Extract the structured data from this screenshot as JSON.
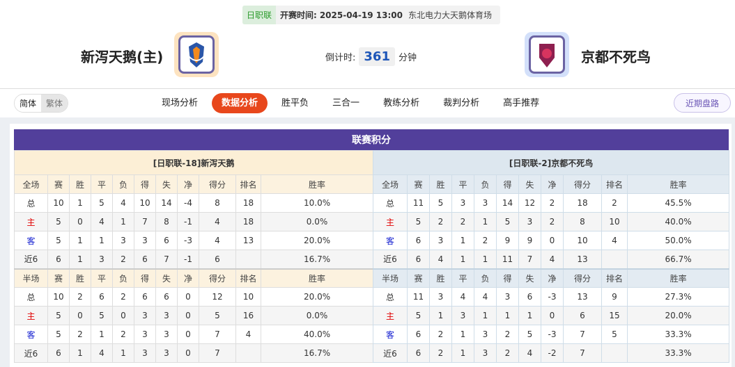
{
  "header": {
    "league": "日职联",
    "time_label": "开赛时间:",
    "time": "2025-04-19 13:00",
    "venue": "东北电力大天鹅体育场"
  },
  "home": {
    "name": "新泻天鹅(主)",
    "logo": "albirex-niigata-crest"
  },
  "away": {
    "name": "京都不死鸟",
    "logo": "kyoto-sanga-crest"
  },
  "countdown": {
    "label": "倒计时:",
    "value": "361",
    "unit": "分钟"
  },
  "lang": {
    "simplified": "简体",
    "traditional": "繁体"
  },
  "nav": [
    "现场分析",
    "数据分析",
    "胜平负",
    "三合一",
    "教练分析",
    "裁判分析",
    "高手推荐"
  ],
  "nav_active": 1,
  "recent_button": "近期盘路",
  "colors": {
    "accent": "#e8471c",
    "title_bar": "#523f9b"
  },
  "standings": {
    "title": "联赛积分",
    "columns": [
      "赛",
      "胜",
      "平",
      "负",
      "得",
      "失",
      "净",
      "得分",
      "排名",
      "胜率"
    ],
    "teams": [
      {
        "header": "[日职联-18]新泻天鹅",
        "full": {
          "label": "全场",
          "rows": [
            [
              "总",
              "10",
              "1",
              "5",
              "4",
              "10",
              "14",
              "-4",
              "8",
              "18",
              "10.0%"
            ],
            [
              "主",
              "5",
              "0",
              "4",
              "1",
              "7",
              "8",
              "-1",
              "4",
              "18",
              "0.0%"
            ],
            [
              "客",
              "5",
              "1",
              "1",
              "3",
              "3",
              "6",
              "-3",
              "4",
              "13",
              "20.0%"
            ],
            [
              "近6",
              "6",
              "1",
              "3",
              "2",
              "6",
              "7",
              "-1",
              "6",
              "",
              "16.7%"
            ]
          ]
        },
        "half": {
          "label": "半场",
          "rows": [
            [
              "总",
              "10",
              "2",
              "6",
              "2",
              "6",
              "6",
              "0",
              "12",
              "10",
              "20.0%"
            ],
            [
              "主",
              "5",
              "0",
              "5",
              "0",
              "3",
              "3",
              "0",
              "5",
              "16",
              "0.0%"
            ],
            [
              "客",
              "5",
              "2",
              "1",
              "2",
              "3",
              "3",
              "0",
              "7",
              "4",
              "40.0%"
            ],
            [
              "近6",
              "6",
              "1",
              "4",
              "1",
              "3",
              "3",
              "0",
              "7",
              "",
              "16.7%"
            ]
          ]
        }
      },
      {
        "header": "[日职联-2]京都不死鸟",
        "full": {
          "label": "全场",
          "rows": [
            [
              "总",
              "11",
              "5",
              "3",
              "3",
              "14",
              "12",
              "2",
              "18",
              "2",
              "45.5%"
            ],
            [
              "主",
              "5",
              "2",
              "2",
              "1",
              "5",
              "3",
              "2",
              "8",
              "10",
              "40.0%"
            ],
            [
              "客",
              "6",
              "3",
              "1",
              "2",
              "9",
              "9",
              "0",
              "10",
              "4",
              "50.0%"
            ],
            [
              "近6",
              "6",
              "4",
              "1",
              "1",
              "11",
              "7",
              "4",
              "13",
              "",
              "66.7%"
            ]
          ]
        },
        "half": {
          "label": "半场",
          "rows": [
            [
              "总",
              "11",
              "3",
              "4",
              "4",
              "3",
              "6",
              "-3",
              "13",
              "9",
              "27.3%"
            ],
            [
              "主",
              "5",
              "1",
              "3",
              "1",
              "1",
              "1",
              "0",
              "6",
              "15",
              "20.0%"
            ],
            [
              "客",
              "6",
              "2",
              "1",
              "3",
              "2",
              "5",
              "-3",
              "7",
              "5",
              "33.3%"
            ],
            [
              "近6",
              "6",
              "2",
              "1",
              "3",
              "2",
              "4",
              "-2",
              "7",
              "",
              "33.3%"
            ]
          ]
        }
      }
    ]
  }
}
